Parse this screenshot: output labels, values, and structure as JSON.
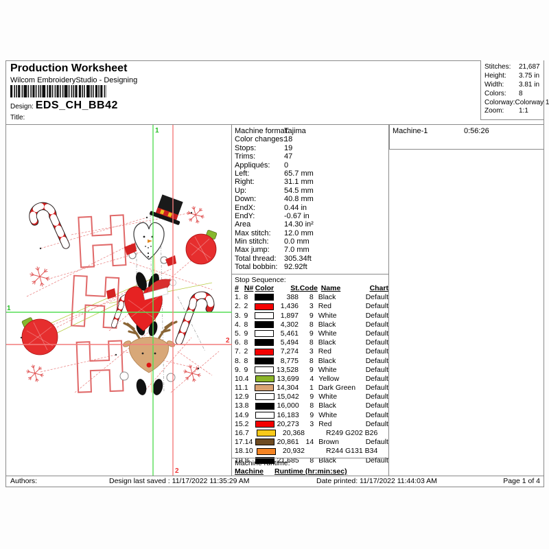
{
  "header": {
    "title": "Production Worksheet",
    "subtitle": "Wilcom EmbroideryStudio - Designing",
    "design_label": "Design:",
    "design_value": "EDS_CH_BB42",
    "title_label": "Title:",
    "summary_rows": [
      {
        "label": "Stitches:",
        "value": "21,687"
      },
      {
        "label": "Height:",
        "value": "3.75 in"
      },
      {
        "label": "Width:",
        "value": "3.81 in"
      },
      {
        "label": "Colors:",
        "value": "8"
      },
      {
        "label": "Colorway:",
        "value": "Colorway 1"
      },
      {
        "label": "Zoom:",
        "value": "1:1"
      }
    ]
  },
  "machine_info_rows": [
    {
      "label": "Machine format:",
      "value": "Tajima"
    },
    {
      "label": "Color changes:",
      "value": "18"
    },
    {
      "label": "Stops:",
      "value": "19"
    },
    {
      "label": "Trims:",
      "value": "47"
    },
    {
      "label": "Appliqués:",
      "value": "0"
    },
    {
      "label": "Left:",
      "value": "65.7 mm"
    },
    {
      "label": "Right:",
      "value": "31.1 mm"
    },
    {
      "label": "Up:",
      "value": "54.5 mm"
    },
    {
      "label": "Down:",
      "value": "40.8 mm"
    },
    {
      "label": "EndX:",
      "value": "0.44 in"
    },
    {
      "label": "EndY:",
      "value": "-0.67 in"
    },
    {
      "label": "Area",
      "value": " 14.30 in²"
    },
    {
      "label": "Max stitch:",
      "value": "12.0 mm"
    },
    {
      "label": "Min stitch:",
      "value": "0.0 mm"
    },
    {
      "label": "Max jump:",
      "value": "7.0 mm"
    },
    {
      "label": "Total thread:",
      "value": "305.34ft"
    },
    {
      "label": "Total bobbin:",
      "value": "92.92ft"
    }
  ],
  "machine_box": {
    "name": "Machine-1",
    "time": "0:56:26"
  },
  "stop_sequence": {
    "title": "Stop Sequence:",
    "columns": [
      "#",
      "N#",
      "Color",
      "St.",
      "Code",
      "Name",
      "Chart"
    ],
    "rows": [
      {
        "num": "1.",
        "n": "8",
        "chip": "#000000",
        "st": "388",
        "code": "8",
        "name": "Black",
        "chart": "Default"
      },
      {
        "num": "2.",
        "n": "2",
        "chip": "#f40000",
        "st": "1,436",
        "code": "3",
        "name": "Red",
        "chart": "Default"
      },
      {
        "num": "3.",
        "n": "9",
        "chip": "#ffffff",
        "st": "1,897",
        "code": "9",
        "name": "White",
        "chart": "Default"
      },
      {
        "num": "4.",
        "n": "8",
        "chip": "#000000",
        "st": "4,302",
        "code": "8",
        "name": "Black",
        "chart": "Default"
      },
      {
        "num": "5.",
        "n": "9",
        "chip": "#ffffff",
        "st": "5,461",
        "code": "9",
        "name": "White",
        "chart": "Default"
      },
      {
        "num": "6.",
        "n": "8",
        "chip": "#000000",
        "st": "5,494",
        "code": "8",
        "name": "Black",
        "chart": "Default"
      },
      {
        "num": "7.",
        "n": "2",
        "chip": "#f40000",
        "st": "7,274",
        "code": "3",
        "name": "Red",
        "chart": "Default"
      },
      {
        "num": "8.",
        "n": "8",
        "chip": "#000000",
        "st": "8,775",
        "code": "8",
        "name": "Black",
        "chart": "Default"
      },
      {
        "num": "9.",
        "n": "9",
        "chip": "#ffffff",
        "st": "13,528",
        "code": "9",
        "name": "White",
        "chart": "Default"
      },
      {
        "num": "10.",
        "n": "4",
        "chip": "#8cb52a",
        "st": "13,699",
        "code": "4",
        "name": "Yellow",
        "chart": "Default"
      },
      {
        "num": "11.",
        "n": "1",
        "chip": "#d9a273",
        "st": "14,304",
        "code": "1",
        "name": "Dark Green",
        "chart": "Default"
      },
      {
        "num": "12.",
        "n": "9",
        "chip": "#ffffff",
        "st": "15,042",
        "code": "9",
        "name": "White",
        "chart": "Default"
      },
      {
        "num": "13.",
        "n": "8",
        "chip": "#000000",
        "st": "16,000",
        "code": "8",
        "name": "Black",
        "chart": "Default"
      },
      {
        "num": "14.",
        "n": "9",
        "chip": "#ffffff",
        "st": "16,183",
        "code": "9",
        "name": "White",
        "chart": "Default"
      },
      {
        "num": "15.",
        "n": "2",
        "chip": "#f40000",
        "st": "20,273",
        "code": "3",
        "name": "Red",
        "chart": "Default"
      },
      {
        "num": "16.",
        "n": "7",
        "chip": "#f9ca1a",
        "st": "20,368",
        "code": "",
        "name": "R249 G202 B26",
        "chart": ""
      },
      {
        "num": "17.",
        "n": "14",
        "chip": "#6e4b22",
        "st": "20,861",
        "code": "14",
        "name": "Brown",
        "chart": "Default"
      },
      {
        "num": "18.",
        "n": "10",
        "chip": "#f48322",
        "st": "20,932",
        "code": "",
        "name": "R244 G131 B34",
        "chart": ""
      },
      {
        "num": "19.",
        "n": "8",
        "chip": "#000000",
        "st": "21,685",
        "code": "8",
        "name": "Black",
        "chart": "Default"
      }
    ]
  },
  "machine_runtime": {
    "title": "Machine runtime:",
    "col_machine": "Machine",
    "col_runtime": "Runtime (hr:min:sec)"
  },
  "footer": {
    "authors_label": "Authors:",
    "last_saved": "Design last saved : 11/17/2022 11:35:29 AM",
    "date_printed": "Date printed: 11/17/2022 11:44:03 AM",
    "page": "Page 1 of 4"
  },
  "preview": {
    "marker1": "1",
    "marker2": "2",
    "guide_green": "#55dd55",
    "guide_red": "#f47c7c"
  }
}
